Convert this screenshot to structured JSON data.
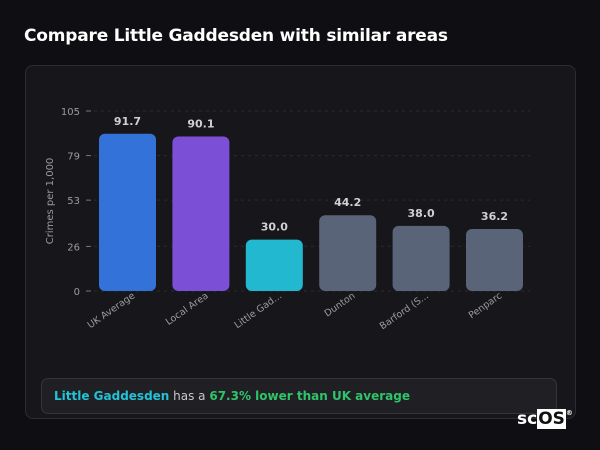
{
  "title": "Compare Little Gaddesden with similar areas",
  "chart_data": {
    "type": "bar",
    "title": "",
    "xlabel": "",
    "ylabel": "Crimes per 1,000",
    "ylim": [
      0,
      105
    ],
    "yticks": [
      0,
      26,
      53,
      79,
      105
    ],
    "grid": true,
    "categories": [
      "UK Average",
      "Local Area",
      "Little Gad...",
      "Dunton",
      "Barford (S...",
      "Penparc"
    ],
    "values": [
      91.7,
      90.1,
      30.0,
      44.2,
      38.0,
      36.2
    ],
    "value_labels": [
      "91.7",
      "90.1",
      "30.0",
      "44.2",
      "38.0",
      "36.2"
    ],
    "colors": [
      "#3373d9",
      "#7b4fd6",
      "#22b8cf",
      "#5a6478",
      "#5a6478",
      "#5a6478"
    ]
  },
  "summary": {
    "area": "Little Gaddesden",
    "middle": " has a ",
    "stat": "67.3% lower than UK average"
  },
  "logo": {
    "text_a": "sc",
    "text_b": "OS",
    "mark": "®"
  }
}
